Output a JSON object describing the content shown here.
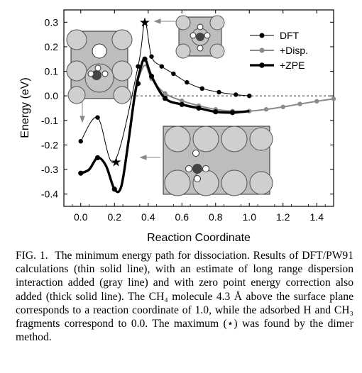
{
  "chart_data": {
    "type": "line",
    "xlabel": "Reaction Coordinate",
    "ylabel": "Energy (eV)",
    "xlim": [
      -0.1,
      1.5
    ],
    "ylim": [
      -0.45,
      0.35
    ],
    "xticks": [
      "0.0",
      "0.2",
      "0.4",
      "0.6",
      "0.8",
      "1.0",
      "1.2",
      "1.4"
    ],
    "yticks": [
      "0.3",
      "0.2",
      "0.1",
      "0.0",
      "-0.1",
      "-0.2",
      "-0.3",
      "-0.4"
    ],
    "legend_position": "top-right",
    "zero_line": "dashed",
    "saddle_marker": {
      "x": 0.38,
      "y": 0.3,
      "symbol": "★"
    },
    "min_marker": {
      "x": 0.21,
      "y": -0.27,
      "symbol": "★"
    },
    "series": [
      {
        "name": "DFT",
        "style": "thin-black",
        "points": [
          [
            0.0,
            -0.185
          ],
          [
            0.1,
            -0.088
          ],
          [
            0.2,
            -0.268
          ],
          [
            0.34,
            0.12
          ],
          [
            0.38,
            0.3
          ],
          [
            0.42,
            0.16
          ],
          [
            0.48,
            0.12
          ],
          [
            0.55,
            0.09
          ],
          [
            0.63,
            0.055
          ],
          [
            0.72,
            0.03
          ],
          [
            0.82,
            0.015
          ],
          [
            0.92,
            0.005
          ],
          [
            1.0,
            0.0
          ]
        ],
        "markers": [
          [
            0.0,
            -0.185
          ],
          [
            0.1,
            -0.088
          ],
          [
            0.34,
            0.12
          ],
          [
            0.42,
            0.16
          ],
          [
            0.48,
            0.12
          ],
          [
            0.55,
            0.09
          ],
          [
            0.63,
            0.055
          ],
          [
            0.72,
            0.03
          ],
          [
            0.82,
            0.015
          ],
          [
            0.92,
            0.005
          ],
          [
            1.0,
            0.0
          ]
        ]
      },
      {
        "name": "+Disp.",
        "style": "gray",
        "points": [
          [
            0.33,
            0.05
          ],
          [
            0.38,
            0.125
          ],
          [
            0.42,
            0.07
          ],
          [
            0.5,
            0.01
          ],
          [
            0.6,
            -0.02
          ],
          [
            0.7,
            -0.04
          ],
          [
            0.8,
            -0.055
          ],
          [
            0.9,
            -0.062
          ],
          [
            1.0,
            -0.062
          ],
          [
            1.1,
            -0.055
          ],
          [
            1.2,
            -0.045
          ],
          [
            1.3,
            -0.033
          ],
          [
            1.4,
            -0.022
          ],
          [
            1.5,
            -0.012
          ]
        ],
        "markers": [
          [
            0.42,
            0.07
          ],
          [
            0.5,
            0.01
          ],
          [
            0.6,
            -0.02
          ],
          [
            0.7,
            -0.04
          ],
          [
            0.8,
            -0.055
          ],
          [
            0.9,
            -0.062
          ],
          [
            1.0,
            -0.062
          ],
          [
            1.1,
            -0.055
          ],
          [
            1.2,
            -0.045
          ],
          [
            1.3,
            -0.033
          ],
          [
            1.4,
            -0.022
          ],
          [
            1.5,
            -0.012
          ]
        ]
      },
      {
        "name": "+ZPE",
        "style": "thick-black",
        "points": [
          [
            0.0,
            -0.315
          ],
          [
            0.05,
            -0.3
          ],
          [
            0.1,
            -0.252
          ],
          [
            0.15,
            -0.285
          ],
          [
            0.2,
            -0.38
          ],
          [
            0.24,
            -0.37
          ],
          [
            0.28,
            -0.2
          ],
          [
            0.32,
            0.0
          ],
          [
            0.35,
            0.1
          ],
          [
            0.38,
            0.15
          ],
          [
            0.42,
            0.08
          ],
          [
            0.5,
            -0.01
          ],
          [
            0.6,
            -0.035
          ],
          [
            0.7,
            -0.05
          ],
          [
            0.8,
            -0.065
          ],
          [
            0.9,
            -0.068
          ],
          [
            1.0,
            -0.062
          ]
        ],
        "markers": [
          [
            0.0,
            -0.315
          ],
          [
            0.1,
            -0.252
          ],
          [
            0.2,
            -0.38
          ],
          [
            0.34,
            0.05
          ],
          [
            0.38,
            0.15
          ],
          [
            0.42,
            0.08
          ],
          [
            0.5,
            -0.01
          ],
          [
            0.6,
            -0.035
          ],
          [
            0.7,
            -0.05
          ],
          [
            0.8,
            -0.065
          ],
          [
            0.9,
            -0.068
          ]
        ]
      }
    ]
  },
  "caption": {
    "lead": "FIG. 1.",
    "text": "The minimum energy path for dissociation. Results of DFT/PW91 calculations (thin solid line), with an estimate of long range dispersion interaction added (gray line) and with zero point energy correction also added (thick solid line). The CH₄ molecule 4.3 Å above the surface plane corresponds to a reaction coordinate of 1.0, while the adsorbed H and CH₃ fragments correspond to 0.0. The maximum (⋆) was found by the dimer method."
  }
}
